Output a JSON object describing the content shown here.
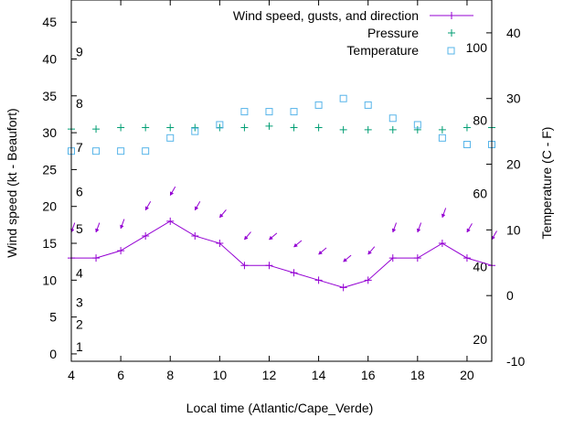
{
  "chart_data": {
    "type": "line",
    "title": "",
    "xlabel": "Local time (Atlantic/Cape_Verde)",
    "ylabel_left": "Wind speed (kt - Beaufort)",
    "ylabel_right": "Temperature (C - F)",
    "xlim": [
      4,
      21
    ],
    "ylim_left": [
      -1,
      48
    ],
    "ylim_right": [
      -10,
      45
    ],
    "x_ticks": [
      4,
      6,
      8,
      10,
      12,
      14,
      16,
      18,
      20
    ],
    "y_ticks_left": [
      0,
      5,
      10,
      15,
      20,
      25,
      30,
      35,
      40,
      45
    ],
    "y_ticks_right": [
      -10,
      0,
      10,
      20,
      30,
      40
    ],
    "beaufort_labels": [
      {
        "label": "1",
        "kt": 1
      },
      {
        "label": "2",
        "kt": 4
      },
      {
        "label": "3",
        "kt": 7
      },
      {
        "label": "4",
        "kt": 11
      },
      {
        "label": "5",
        "kt": 17
      },
      {
        "label": "6",
        "kt": 22
      },
      {
        "label": "7",
        "kt": 28
      },
      {
        "label": "8",
        "kt": 34
      },
      {
        "label": "9",
        "kt": 41
      }
    ],
    "fahrenheit_labels": [
      {
        "label": "20",
        "celsius": -6.67
      },
      {
        "label": "40",
        "celsius": 4.44
      },
      {
        "label": "60",
        "celsius": 15.56
      },
      {
        "label": "80",
        "celsius": 26.67
      },
      {
        "label": "100",
        "celsius": 37.78
      }
    ],
    "legend_position": "top-right",
    "series": [
      {
        "name": "Wind speed, gusts, and direction",
        "axis": "left",
        "color": "#9400d3",
        "marker": "line-plus",
        "x": [
          4,
          5,
          6,
          7,
          8,
          9,
          10,
          11,
          12,
          13,
          14,
          15,
          16,
          17,
          18,
          19,
          20,
          21
        ],
        "values": [
          13,
          13,
          14,
          16,
          18,
          16,
          15,
          12,
          12,
          11,
          10,
          9,
          10,
          13,
          13,
          15,
          13,
          12
        ],
        "gusts": [
          16.5,
          16.5,
          17,
          19.5,
          21.5,
          19.5,
          18.5,
          15.5,
          15.5,
          14.5,
          13.5,
          12.5,
          13.5,
          16.5,
          16.5,
          18.5,
          16.5,
          15.5
        ],
        "direction_deg": [
          20,
          20,
          20,
          30,
          30,
          30,
          40,
          40,
          50,
          50,
          50,
          50,
          40,
          20,
          20,
          20,
          30,
          30
        ]
      },
      {
        "name": "Pressure",
        "axis": "left",
        "color": "#009e73",
        "marker": "plus",
        "x": [
          4,
          5,
          6,
          7,
          8,
          9,
          10,
          11,
          12,
          13,
          14,
          15,
          16,
          17,
          18,
          19,
          20,
          21
        ],
        "values": [
          30.5,
          30.5,
          30.7,
          30.7,
          30.7,
          30.7,
          30.7,
          30.7,
          30.9,
          30.7,
          30.7,
          30.4,
          30.4,
          30.4,
          30.4,
          30.4,
          30.7,
          30.7
        ]
      },
      {
        "name": "Temperature",
        "axis": "right",
        "color": "#56b4e9",
        "marker": "open-square",
        "x": [
          4,
          5,
          6,
          7,
          8,
          9,
          10,
          11,
          12,
          13,
          14,
          15,
          16,
          17,
          18,
          19,
          20,
          21
        ],
        "values": [
          22,
          22,
          22,
          22,
          24,
          25,
          26,
          28,
          28,
          28,
          29,
          30,
          29,
          27,
          26,
          24,
          23,
          23
        ]
      }
    ]
  }
}
